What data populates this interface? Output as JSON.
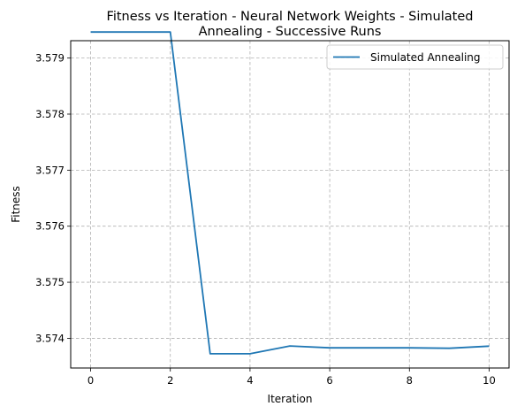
{
  "chart_data": {
    "type": "line",
    "title_line1": "Fitness vs Iteration - Neural Network Weights - Simulated",
    "title_line2": "Annealing - Successive Runs",
    "xlabel": "Iteration",
    "ylabel": "Fitness",
    "xlim": [
      -0.5,
      10.5
    ],
    "ylim": [
      3.57347,
      3.57931
    ],
    "xticks": [
      0,
      2,
      4,
      6,
      8,
      10
    ],
    "yticks": [
      3.574,
      3.575,
      3.576,
      3.577,
      3.578,
      3.579
    ],
    "grid": true,
    "legend_position": "top-right",
    "series": [
      {
        "name": "Simulated Annealing",
        "color": "#1f77b4",
        "x": [
          0,
          1,
          2,
          3,
          4,
          5,
          6,
          7,
          8,
          9,
          10
        ],
        "y": [
          3.579465,
          3.579465,
          3.579465,
          3.573725,
          3.573725,
          3.573862,
          3.57383,
          3.57383,
          3.57383,
          3.573822,
          3.57386
        ]
      }
    ]
  }
}
